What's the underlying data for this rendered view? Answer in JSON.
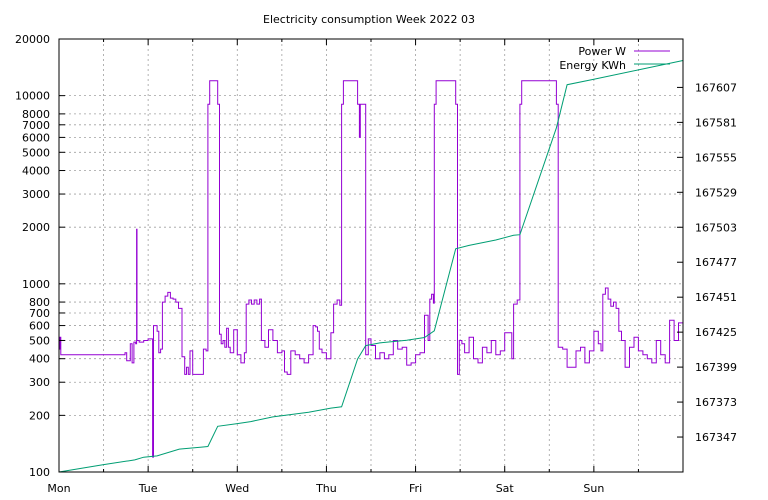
{
  "chart_data": {
    "type": "line",
    "title": "Electricity consumption Week 2022 03",
    "x_tick_labels": [
      "Mon",
      "Tue",
      "Wed",
      "Thu",
      "Fri",
      "Sat",
      "Sun"
    ],
    "x_range_days": [
      0,
      7
    ],
    "y_left": {
      "scale": "log",
      "range": [
        100,
        20000
      ],
      "tick_labels": [
        "100",
        "200",
        "300",
        "400",
        "500",
        "600",
        "700",
        "800",
        "1000",
        "2000",
        "3000",
        "4000",
        "5000",
        "6000",
        "7000",
        "8000",
        "10000",
        "20000"
      ]
    },
    "y_right": {
      "scale": "linear",
      "range": [
        167321,
        167643
      ],
      "tick_labels": [
        "167347",
        "167373",
        "167399",
        "167425",
        "167451",
        "167477",
        "167503",
        "167529",
        "167555",
        "167581",
        "167607"
      ]
    },
    "grid": true,
    "legend_position": "top-right",
    "series": [
      {
        "name": "Power W",
        "color": "#9400d3",
        "axis": "left",
        "style": "steps",
        "points": [
          [
            0.0,
            450
          ],
          [
            0.01,
            520
          ],
          [
            0.02,
            420
          ],
          [
            0.72,
            420
          ],
          [
            0.74,
            430
          ],
          [
            0.76,
            390
          ],
          [
            0.8,
            480
          ],
          [
            0.82,
            380
          ],
          [
            0.84,
            490
          ],
          [
            0.86,
            480
          ],
          [
            0.87,
            1950
          ],
          [
            0.875,
            500
          ],
          [
            0.9,
            490
          ],
          [
            0.95,
            500
          ],
          [
            1.0,
            510
          ],
          [
            1.03,
            510
          ],
          [
            1.05,
            120
          ],
          [
            1.06,
            600
          ],
          [
            1.1,
            560
          ],
          [
            1.12,
            430
          ],
          [
            1.14,
            450
          ],
          [
            1.16,
            800
          ],
          [
            1.19,
            860
          ],
          [
            1.22,
            900
          ],
          [
            1.25,
            840
          ],
          [
            1.28,
            830
          ],
          [
            1.31,
            800
          ],
          [
            1.34,
            740
          ],
          [
            1.38,
            410
          ],
          [
            1.41,
            330
          ],
          [
            1.43,
            360
          ],
          [
            1.45,
            330
          ],
          [
            1.47,
            440
          ],
          [
            1.5,
            330
          ],
          [
            1.55,
            330
          ],
          [
            1.62,
            450
          ],
          [
            1.65,
            440
          ],
          [
            1.67,
            9000
          ],
          [
            1.69,
            12000
          ],
          [
            1.78,
            9000
          ],
          [
            1.8,
            540
          ],
          [
            1.82,
            480
          ],
          [
            1.84,
            500
          ],
          [
            1.86,
            460
          ],
          [
            1.88,
            580
          ],
          [
            1.9,
            460
          ],
          [
            1.92,
            430
          ],
          [
            1.94,
            430
          ],
          [
            1.96,
            570
          ],
          [
            2.0,
            420
          ],
          [
            2.04,
            380
          ],
          [
            2.08,
            430
          ],
          [
            2.1,
            780
          ],
          [
            2.13,
            820
          ],
          [
            2.16,
            780
          ],
          [
            2.19,
            820
          ],
          [
            2.22,
            780
          ],
          [
            2.25,
            830
          ],
          [
            2.27,
            500
          ],
          [
            2.31,
            460
          ],
          [
            2.35,
            570
          ],
          [
            2.4,
            500
          ],
          [
            2.45,
            430
          ],
          [
            2.5,
            440
          ],
          [
            2.53,
            340
          ],
          [
            2.56,
            330
          ],
          [
            2.6,
            440
          ],
          [
            2.65,
            420
          ],
          [
            2.7,
            400
          ],
          [
            2.75,
            380
          ],
          [
            2.8,
            420
          ],
          [
            2.85,
            600
          ],
          [
            2.88,
            590
          ],
          [
            2.9,
            560
          ],
          [
            2.92,
            450
          ],
          [
            2.95,
            430
          ],
          [
            3.0,
            400
          ],
          [
            3.05,
            550
          ],
          [
            3.08,
            780
          ],
          [
            3.12,
            820
          ],
          [
            3.15,
            770
          ],
          [
            3.17,
            9000
          ],
          [
            3.19,
            12000
          ],
          [
            3.35,
            9000
          ],
          [
            3.37,
            6000
          ],
          [
            3.38,
            9000
          ],
          [
            3.42,
            9000
          ],
          [
            3.44,
            420
          ],
          [
            3.47,
            510
          ],
          [
            3.5,
            470
          ],
          [
            3.55,
            400
          ],
          [
            3.6,
            430
          ],
          [
            3.65,
            400
          ],
          [
            3.7,
            420
          ],
          [
            3.75,
            500
          ],
          [
            3.8,
            450
          ],
          [
            3.85,
            460
          ],
          [
            3.9,
            370
          ],
          [
            3.95,
            380
          ],
          [
            4.0,
            420
          ],
          [
            4.05,
            430
          ],
          [
            4.1,
            680
          ],
          [
            4.14,
            500
          ],
          [
            4.16,
            830
          ],
          [
            4.18,
            880
          ],
          [
            4.2,
            790
          ],
          [
            4.21,
            9000
          ],
          [
            4.23,
            12000
          ],
          [
            4.45,
            9000
          ],
          [
            4.47,
            330
          ],
          [
            4.49,
            500
          ],
          [
            4.52,
            480
          ],
          [
            4.55,
            430
          ],
          [
            4.6,
            520
          ],
          [
            4.65,
            400
          ],
          [
            4.7,
            380
          ],
          [
            4.75,
            460
          ],
          [
            4.8,
            430
          ],
          [
            4.85,
            500
          ],
          [
            4.9,
            420
          ],
          [
            4.95,
            440
          ],
          [
            5.0,
            550
          ],
          [
            5.05,
            550
          ],
          [
            5.08,
            400
          ],
          [
            5.1,
            780
          ],
          [
            5.14,
            820
          ],
          [
            5.17,
            9000
          ],
          [
            5.19,
            12000
          ],
          [
            5.58,
            9000
          ],
          [
            5.6,
            460
          ],
          [
            5.65,
            450
          ],
          [
            5.7,
            360
          ],
          [
            5.75,
            360
          ],
          [
            5.8,
            440
          ],
          [
            5.85,
            460
          ],
          [
            5.9,
            380
          ],
          [
            5.95,
            440
          ],
          [
            6.0,
            560
          ],
          [
            6.05,
            480
          ],
          [
            6.08,
            440
          ],
          [
            6.1,
            880
          ],
          [
            6.13,
            950
          ],
          [
            6.16,
            830
          ],
          [
            6.19,
            760
          ],
          [
            6.22,
            800
          ],
          [
            6.25,
            740
          ],
          [
            6.28,
            560
          ],
          [
            6.31,
            500
          ],
          [
            6.35,
            360
          ],
          [
            6.4,
            460
          ],
          [
            6.45,
            520
          ],
          [
            6.5,
            440
          ],
          [
            6.55,
            420
          ],
          [
            6.6,
            400
          ],
          [
            6.65,
            380
          ],
          [
            6.7,
            500
          ],
          [
            6.75,
            420
          ],
          [
            6.8,
            380
          ],
          [
            6.85,
            640
          ],
          [
            6.9,
            500
          ],
          [
            6.95,
            620
          ],
          [
            7.0,
            620
          ]
        ]
      },
      {
        "name": "Energy KWh",
        "color": "#009e73",
        "axis": "right",
        "style": "lines",
        "points": [
          [
            0.0,
            167321.0
          ],
          [
            0.5,
            167326.5
          ],
          [
            0.85,
            167330.0
          ],
          [
            0.95,
            167332.0
          ],
          [
            1.1,
            167333.0
          ],
          [
            1.35,
            167338.0
          ],
          [
            1.6,
            167339.5
          ],
          [
            1.67,
            167340.0
          ],
          [
            1.78,
            167355.0
          ],
          [
            2.0,
            167357.0
          ],
          [
            2.15,
            167358.5
          ],
          [
            2.4,
            167362.0
          ],
          [
            2.8,
            167365.5
          ],
          [
            3.05,
            167368.5
          ],
          [
            3.17,
            167369.5
          ],
          [
            3.35,
            167405.0
          ],
          [
            3.44,
            167415.0
          ],
          [
            3.6,
            167417.0
          ],
          [
            3.9,
            167419.0
          ],
          [
            4.1,
            167421.0
          ],
          [
            4.21,
            167426.0
          ],
          [
            4.45,
            167487.0
          ],
          [
            4.6,
            167489.5
          ],
          [
            4.9,
            167493.5
          ],
          [
            5.1,
            167497.0
          ],
          [
            5.17,
            167497.5
          ],
          [
            5.58,
            167577.0
          ],
          [
            5.7,
            167609.0
          ],
          [
            6.0,
            167613.0
          ],
          [
            6.5,
            167620.0
          ],
          [
            7.0,
            167627.0
          ]
        ]
      }
    ]
  }
}
